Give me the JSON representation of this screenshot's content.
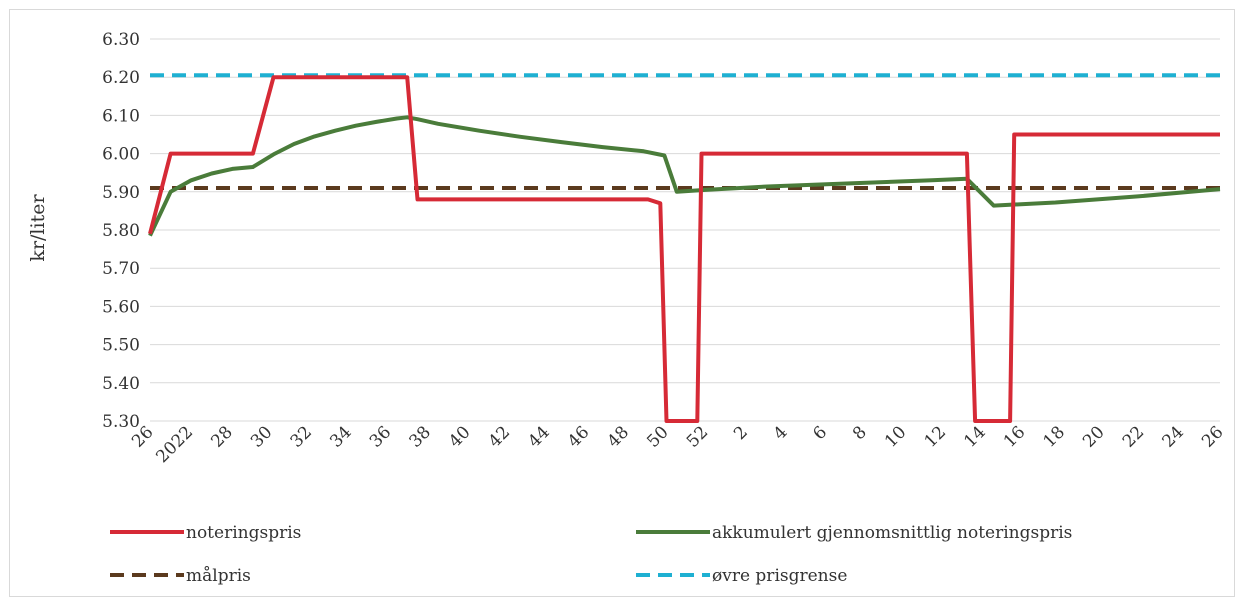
{
  "chart_data": {
    "type": "line",
    "ylabel": "kr/liter",
    "ylim": [
      5.3,
      6.3
    ],
    "y_ticks": [
      "5.30",
      "5.40",
      "5.50",
      "5.60",
      "5.70",
      "5.80",
      "5.90",
      "6.00",
      "6.10",
      "6.20",
      "6.30"
    ],
    "x_ticks": [
      "26",
      "2022",
      "28",
      "30",
      "32",
      "34",
      "36",
      "38",
      "40",
      "42",
      "44",
      "46",
      "48",
      "50",
      "52",
      "2",
      "4",
      "6",
      "8",
      "10",
      "12",
      "14",
      "16",
      "18",
      "20",
      "22",
      "24",
      "26"
    ],
    "grid": "horizontal",
    "legend_position": "bottom",
    "series": [
      {
        "name": "noteringspris",
        "color": "#d62a36",
        "dash": "solid",
        "points": [
          [
            0,
            5.79
          ],
          [
            1,
            6.0
          ],
          [
            5,
            6.0
          ],
          [
            6,
            6.2
          ],
          [
            12.5,
            6.2
          ],
          [
            13,
            5.88
          ],
          [
            24.2,
            5.88
          ],
          [
            24.8,
            5.87
          ],
          [
            25.1,
            5.3
          ],
          [
            26.6,
            5.3
          ],
          [
            26.8,
            6.0
          ],
          [
            39.7,
            6.0
          ],
          [
            40.1,
            5.3
          ],
          [
            41.8,
            5.3
          ],
          [
            42,
            6.05
          ],
          [
            52,
            6.05
          ]
        ]
      },
      {
        "name": "akkumulert gjennomsnittlig noteringspris",
        "color": "#4a7c3a",
        "dash": "solid",
        "points": [
          [
            0,
            5.785
          ],
          [
            1,
            5.9
          ],
          [
            2,
            5.93
          ],
          [
            3,
            5.948
          ],
          [
            4,
            5.96
          ],
          [
            5,
            5.965
          ],
          [
            6,
            5.998
          ],
          [
            7,
            6.025
          ],
          [
            8,
            6.045
          ],
          [
            9,
            6.06
          ],
          [
            10,
            6.073
          ],
          [
            11,
            6.083
          ],
          [
            12,
            6.092
          ],
          [
            12.5,
            6.095
          ],
          [
            13,
            6.09
          ],
          [
            14,
            6.078
          ],
          [
            16,
            6.06
          ],
          [
            18,
            6.044
          ],
          [
            20,
            6.03
          ],
          [
            22,
            6.017
          ],
          [
            24,
            6.006
          ],
          [
            25,
            5.995
          ],
          [
            25.6,
            5.9
          ],
          [
            27,
            5.905
          ],
          [
            30,
            5.914
          ],
          [
            34,
            5.922
          ],
          [
            38,
            5.93
          ],
          [
            39.7,
            5.934
          ],
          [
            41,
            5.864
          ],
          [
            44,
            5.872
          ],
          [
            48,
            5.888
          ],
          [
            52,
            5.907
          ]
        ]
      },
      {
        "name": "målpris",
        "color": "#5b3a1e",
        "dash": "dashed",
        "points": [
          [
            0,
            5.91
          ],
          [
            52,
            5.91
          ]
        ]
      },
      {
        "name": "øvre prisgrense",
        "color": "#1eb0d2",
        "dash": "dashed",
        "points": [
          [
            0,
            6.205
          ],
          [
            52,
            6.205
          ]
        ]
      }
    ]
  }
}
